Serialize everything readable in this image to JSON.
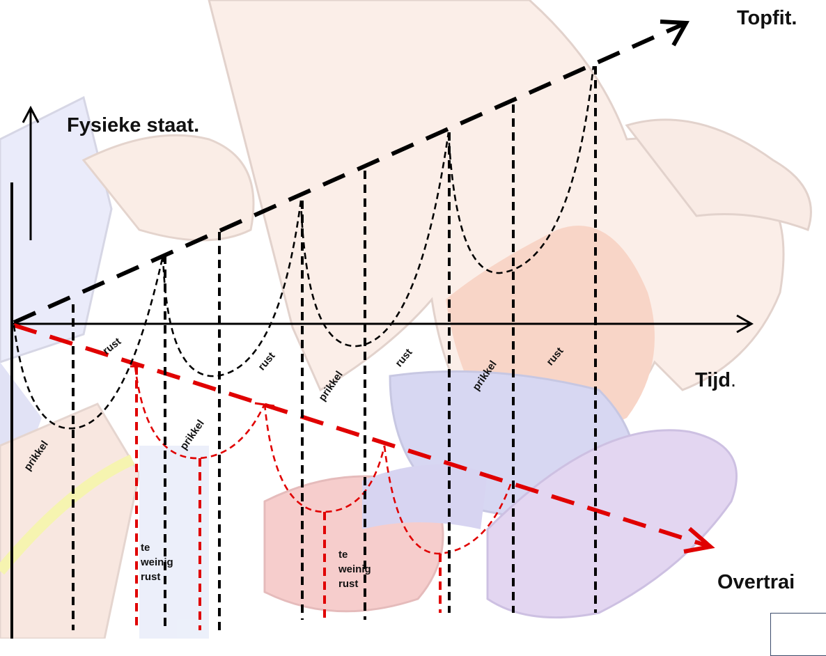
{
  "labels": {
    "y_axis": "Fysieke staat.",
    "top": "Topfit.",
    "x_axis_main": "Tijd",
    "x_axis_dot": ".",
    "overtraining": "Overtrai"
  },
  "phase_labels": {
    "prikkel": "prikkel",
    "rust": "rust"
  },
  "red_notes": [
    {
      "l1": "te",
      "l2": "weinig",
      "l3": "rust"
    },
    {
      "l1": "te",
      "l2": "weinig",
      "l3": "rust"
    }
  ],
  "colors": {
    "axis": "#000000",
    "good_path": "#111111",
    "bad_path": "#e00000",
    "bg_figure_skin": "#f6d6c4",
    "bg_figure_outline": "#caa8a0",
    "bg_blue": "#c9c9ee",
    "bg_orange": "#f5b8a0",
    "bg_red": "#f1aaa8",
    "bg_yellow": "#f7f39a"
  }
}
